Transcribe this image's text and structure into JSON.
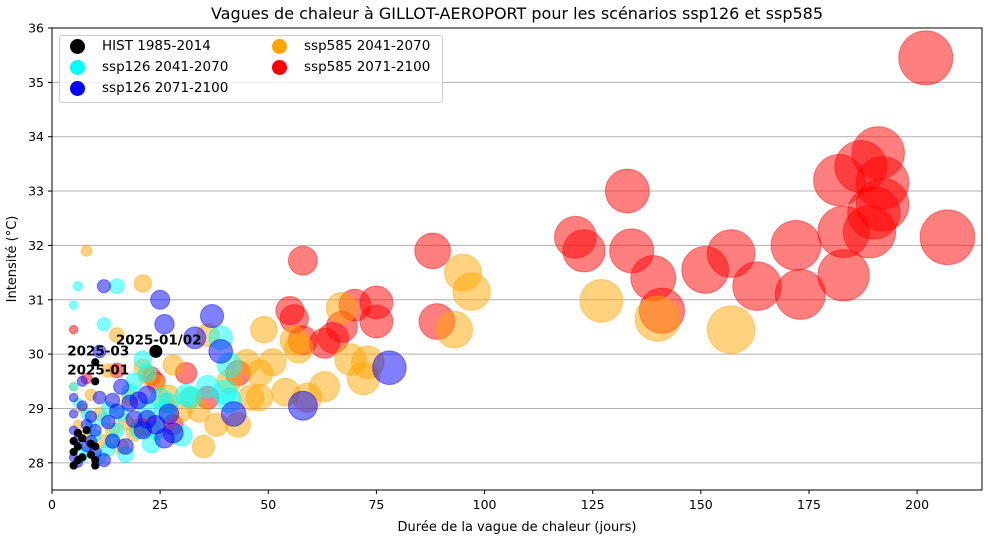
{
  "chart_data": {
    "type": "scatter",
    "title": "Vagues de chaleur à GILLOT-AEROPORT pour les scénarios ssp126 et ssp585",
    "xlabel": "Durée de la vague de chaleur (jours)",
    "ylabel": "Intensité (°C)",
    "xlim": [
      0,
      215
    ],
    "ylim": [
      27.5,
      36
    ],
    "xticks": [
      0,
      25,
      50,
      75,
      100,
      125,
      150,
      175,
      200
    ],
    "yticks": [
      28,
      29,
      30,
      31,
      32,
      33,
      34,
      35,
      36
    ],
    "grid": "horizontal",
    "legend_position": "upper left",
    "marker_size_note": "marker area proportional to duration",
    "series": [
      {
        "name": "HIST 1985-2014",
        "color": "#000000",
        "points": [
          [
            5,
            27.95
          ],
          [
            5,
            28.2
          ],
          [
            5,
            28.4
          ],
          [
            6,
            28.05
          ],
          [
            6,
            28.3
          ],
          [
            6,
            28.55
          ],
          [
            7,
            28.1
          ],
          [
            7,
            28.45
          ],
          [
            8,
            28.6
          ],
          [
            9,
            28.15
          ],
          [
            9,
            28.35
          ],
          [
            10,
            28.05
          ],
          [
            10,
            28.3
          ],
          [
            10,
            27.95
          ],
          [
            10,
            29.5
          ],
          [
            10,
            29.85
          ],
          [
            24,
            30.05
          ]
        ]
      },
      {
        "name": "ssp126 2041-2070",
        "color": "#00ffff",
        "points": [
          [
            5,
            30.9
          ],
          [
            6,
            31.25
          ],
          [
            12,
            30.55
          ],
          [
            15,
            31.25
          ],
          [
            5,
            29.4
          ],
          [
            6,
            29.1
          ],
          [
            8,
            28.9
          ],
          [
            9,
            28.7
          ],
          [
            10,
            28.5
          ],
          [
            12,
            28.8
          ],
          [
            13,
            29.0
          ],
          [
            14,
            28.4
          ],
          [
            15,
            28.6
          ],
          [
            16,
            28.9
          ],
          [
            17,
            28.15
          ],
          [
            18,
            29.3
          ],
          [
            19,
            29.5
          ],
          [
            20,
            28.6
          ],
          [
            21,
            29.9
          ],
          [
            22,
            29.65
          ],
          [
            22,
            29.0
          ],
          [
            23,
            28.35
          ],
          [
            24,
            28.6
          ],
          [
            25,
            29.2
          ],
          [
            26,
            28.95
          ],
          [
            27,
            29.1
          ],
          [
            30,
            28.5
          ],
          [
            31,
            29.25
          ],
          [
            32,
            29.2
          ],
          [
            36,
            29.4
          ],
          [
            39,
            30.3
          ],
          [
            40,
            29.3
          ],
          [
            41,
            29.8
          ],
          [
            41,
            29.15
          ],
          [
            6,
            28.3
          ],
          [
            7,
            28.1
          ],
          [
            8,
            28.2
          ],
          [
            11,
            28.1
          ],
          [
            13,
            28.25
          ]
        ]
      },
      {
        "name": "ssp126 2071-2100",
        "color": "#0000ff",
        "points": [
          [
            5,
            28.6
          ],
          [
            5,
            28.9
          ],
          [
            5,
            29.2
          ],
          [
            6,
            28.45
          ],
          [
            7,
            29.05
          ],
          [
            7,
            29.5
          ],
          [
            8,
            28.3
          ],
          [
            8,
            28.7
          ],
          [
            9,
            28.85
          ],
          [
            10,
            28.2
          ],
          [
            10,
            28.6
          ],
          [
            11,
            29.2
          ],
          [
            11,
            30.05
          ],
          [
            12,
            28.05
          ],
          [
            12,
            31.25
          ],
          [
            13,
            28.75
          ],
          [
            14,
            28.4
          ],
          [
            14,
            29.15
          ],
          [
            15,
            28.95
          ],
          [
            16,
            29.4
          ],
          [
            17,
            28.3
          ],
          [
            18,
            29.1
          ],
          [
            19,
            28.8
          ],
          [
            20,
            29.15
          ],
          [
            21,
            28.6
          ],
          [
            22,
            28.8
          ],
          [
            22,
            29.25
          ],
          [
            24,
            28.7
          ],
          [
            25,
            31.0
          ],
          [
            26,
            30.55
          ],
          [
            26,
            28.45
          ],
          [
            27,
            28.9
          ],
          [
            28,
            28.55
          ],
          [
            33,
            30.3
          ],
          [
            37,
            30.7
          ],
          [
            39,
            30.05
          ],
          [
            42,
            28.9
          ],
          [
            58,
            29.05
          ],
          [
            78,
            29.75
          ],
          [
            5,
            28.1
          ],
          [
            6,
            28.0
          ],
          [
            9,
            28.4
          ]
        ]
      },
      {
        "name": "ssp585 2041-2070",
        "color": "#ffa500",
        "points": [
          [
            5,
            29.4
          ],
          [
            6,
            28.7
          ],
          [
            7,
            29.0
          ],
          [
            8,
            28.5
          ],
          [
            9,
            29.25
          ],
          [
            11,
            28.9
          ],
          [
            12,
            28.4
          ],
          [
            13,
            29.7
          ],
          [
            14,
            28.6
          ],
          [
            15,
            30.35
          ],
          [
            16,
            28.3
          ],
          [
            17,
            28.75
          ],
          [
            18,
            29.2
          ],
          [
            19,
            28.55
          ],
          [
            20,
            28.65
          ],
          [
            21,
            29.75
          ],
          [
            22,
            29.6
          ],
          [
            23,
            28.7
          ],
          [
            24,
            29.45
          ],
          [
            26,
            29.1
          ],
          [
            27,
            29.25
          ],
          [
            28,
            29.8
          ],
          [
            30,
            28.95
          ],
          [
            32,
            29.2
          ],
          [
            34,
            28.95
          ],
          [
            35,
            28.3
          ],
          [
            36,
            30.35
          ],
          [
            38,
            28.7
          ],
          [
            41,
            29.5
          ],
          [
            43,
            28.7
          ],
          [
            45,
            29.85
          ],
          [
            46,
            29.2
          ],
          [
            48,
            29.65
          ],
          [
            48,
            29.2
          ],
          [
            49,
            30.45
          ],
          [
            51,
            29.85
          ],
          [
            54,
            29.3
          ],
          [
            56,
            30.25
          ],
          [
            57,
            30.1
          ],
          [
            59,
            29.2
          ],
          [
            63,
            29.4
          ],
          [
            67,
            30.85
          ],
          [
            69,
            29.9
          ],
          [
            72,
            29.55
          ],
          [
            73,
            29.85
          ],
          [
            95,
            31.5
          ],
          [
            97,
            31.15
          ],
          [
            93,
            30.45
          ],
          [
            127,
            30.98
          ],
          [
            140,
            30.65
          ],
          [
            157,
            30.45
          ],
          [
            8,
            31.9
          ],
          [
            21,
            31.3
          ]
        ]
      },
      {
        "name": "ssp585 2071-2100",
        "color": "#ff0000",
        "points": [
          [
            5,
            30.45
          ],
          [
            8,
            29.55
          ],
          [
            15,
            29.7
          ],
          [
            21,
            28.65
          ],
          [
            23,
            29.6
          ],
          [
            24,
            29.5
          ],
          [
            28,
            28.7
          ],
          [
            31,
            29.65
          ],
          [
            36,
            29.2
          ],
          [
            43,
            29.65
          ],
          [
            55,
            30.8
          ],
          [
            56,
            30.65
          ],
          [
            58,
            31.72
          ],
          [
            58,
            30.25
          ],
          [
            63,
            30.2
          ],
          [
            65,
            30.3
          ],
          [
            67,
            30.5
          ],
          [
            70,
            30.9
          ],
          [
            75,
            30.95
          ],
          [
            75,
            30.6
          ],
          [
            88,
            31.9
          ],
          [
            89,
            30.6
          ],
          [
            121,
            32.15
          ],
          [
            123,
            31.9
          ],
          [
            133,
            33.0
          ],
          [
            134,
            31.9
          ],
          [
            139,
            31.4
          ],
          [
            141,
            30.8
          ],
          [
            151,
            31.55
          ],
          [
            157,
            31.85
          ],
          [
            163,
            31.25
          ],
          [
            172,
            32.0
          ],
          [
            173,
            31.1
          ],
          [
            182,
            33.2
          ],
          [
            183,
            32.25
          ],
          [
            183,
            31.45
          ],
          [
            187,
            33.45
          ],
          [
            189,
            32.25
          ],
          [
            190,
            32.6
          ],
          [
            191,
            33.7
          ],
          [
            192,
            33.15
          ],
          [
            192,
            32.75
          ],
          [
            202,
            35.45
          ],
          [
            207,
            32.15
          ]
        ]
      }
    ],
    "annotations": [
      {
        "text": "2025-01/02",
        "x": 24,
        "y": 30.05
      },
      {
        "text": "2025-03",
        "x": 10,
        "y": 29.85
      },
      {
        "text": "2025-01",
        "x": 10,
        "y": 29.5
      }
    ]
  },
  "legend": {
    "items": [
      {
        "label": "HIST 1985-2014",
        "color": "#000000"
      },
      {
        "label": "ssp126 2041-2070",
        "color": "#00ffff"
      },
      {
        "label": "ssp126 2071-2100",
        "color": "#0000ff"
      },
      {
        "label": "ssp585 2041-2070",
        "color": "#ffa500"
      },
      {
        "label": "ssp585 2071-2100",
        "color": "#ff0000"
      }
    ]
  }
}
